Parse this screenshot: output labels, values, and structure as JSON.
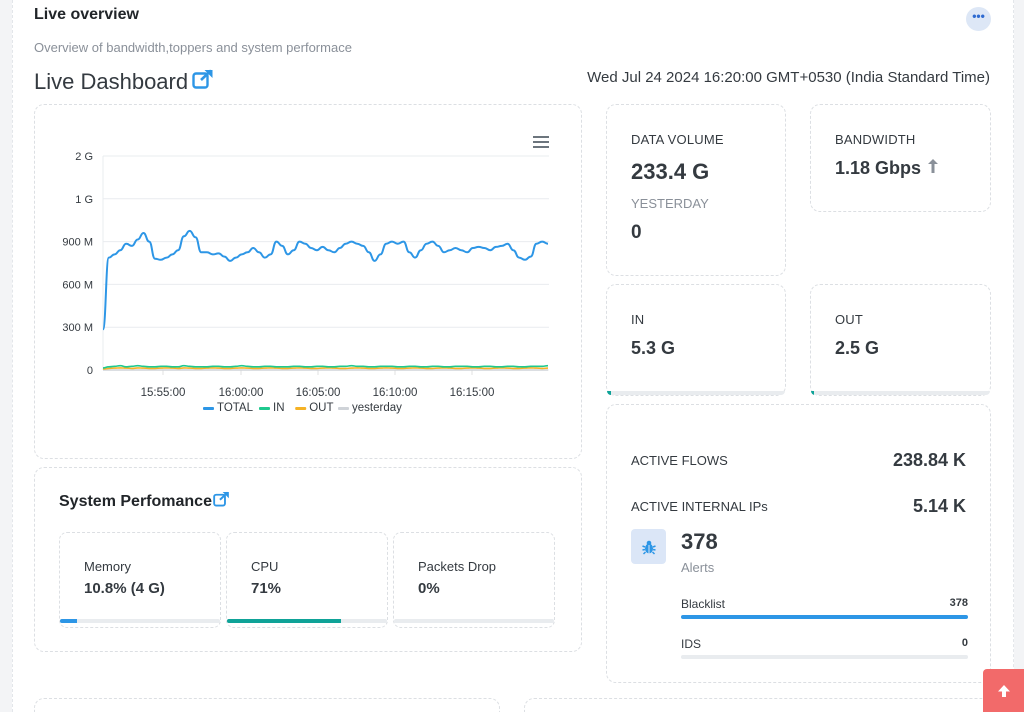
{
  "header": {
    "title": "Live overview",
    "subtitle": "Overview of bandwidth,toppers and system performace",
    "more_label": "•••"
  },
  "dashboard": {
    "title": "Live Dashboard",
    "timestamp": "Wed Jul 24 2024 16:20:00 GMT+0530 (India Standard Time)"
  },
  "chart_data": {
    "type": "line",
    "yticks": [
      "2 G",
      "1 G",
      "900 M",
      "600 M",
      "300 M",
      "0"
    ],
    "xticks": [
      "15:55:00",
      "16:00:00",
      "16:05:00",
      "16:10:00",
      "16:15:00"
    ],
    "series": [
      {
        "name": "TOTAL",
        "color": "#2d96e6",
        "values": [
          0.38,
          1.05,
          1.08,
          1.12,
          1.18,
          1.16,
          1.22,
          1.28,
          1.2,
          1.04,
          1.03,
          1.05,
          1.08,
          1.12,
          1.25,
          1.3,
          1.24,
          1.1,
          1.1,
          1.08,
          1.09,
          1.06,
          1.02,
          1.05,
          1.08,
          1.1,
          1.14,
          1.1,
          1.05,
          1.08,
          1.2,
          1.16,
          1.08,
          1.12,
          1.2,
          1.18,
          1.14,
          1.12,
          1.15,
          1.12,
          1.1,
          1.14,
          1.18,
          1.2,
          1.18,
          1.16,
          1.1,
          1.02,
          1.08,
          1.18,
          1.2,
          1.18,
          1.2,
          1.1,
          1.05,
          1.12,
          1.18,
          1.2,
          1.16,
          1.1,
          1.12,
          1.14,
          1.12,
          1.1,
          1.14,
          1.15,
          1.14,
          1.12,
          1.15,
          1.16,
          1.18,
          1.12,
          1.05,
          1.03,
          1.06,
          1.18,
          1.2,
          1.18
        ]
      },
      {
        "name": "IN",
        "color": "#1fc98e",
        "values": [
          0.02,
          0.03,
          0.035,
          0.04,
          0.03,
          0.035,
          0.04,
          0.035,
          0.03,
          0.03,
          0.035,
          0.035,
          0.03,
          0.03,
          0.04,
          0.035,
          0.03,
          0.03,
          0.03,
          0.035,
          0.035,
          0.03,
          0.03,
          0.035,
          0.04,
          0.035,
          0.03,
          0.03,
          0.035,
          0.035,
          0.03,
          0.03,
          0.03,
          0.035,
          0.035,
          0.03,
          0.03,
          0.035,
          0.035,
          0.03,
          0.03,
          0.035,
          0.035,
          0.04,
          0.035,
          0.035,
          0.03,
          0.03,
          0.035,
          0.035,
          0.035,
          0.03,
          0.03,
          0.035,
          0.035,
          0.03,
          0.03,
          0.035,
          0.035,
          0.03,
          0.03,
          0.035,
          0.035,
          0.035,
          0.03,
          0.03,
          0.035,
          0.035,
          0.03,
          0.03,
          0.035,
          0.035,
          0.03,
          0.03,
          0.035,
          0.035,
          0.035,
          0.04
        ]
      },
      {
        "name": "OUT",
        "color": "#f5b225",
        "values": [
          0.01,
          0.015,
          0.018,
          0.02,
          0.018,
          0.015,
          0.02,
          0.018,
          0.015,
          0.015,
          0.018,
          0.02,
          0.018,
          0.015,
          0.02,
          0.018,
          0.015,
          0.015,
          0.018,
          0.02,
          0.018,
          0.015,
          0.015,
          0.018,
          0.02,
          0.018,
          0.015,
          0.015,
          0.018,
          0.02,
          0.018,
          0.015,
          0.015,
          0.018,
          0.02,
          0.018,
          0.015,
          0.015,
          0.018,
          0.02,
          0.018,
          0.015,
          0.015,
          0.018,
          0.02,
          0.018,
          0.015,
          0.015,
          0.018,
          0.02,
          0.018,
          0.015,
          0.015,
          0.018,
          0.02,
          0.018,
          0.015,
          0.015,
          0.018,
          0.02,
          0.018,
          0.015,
          0.015,
          0.018,
          0.02,
          0.018,
          0.015,
          0.015,
          0.018,
          0.02,
          0.018,
          0.015,
          0.015,
          0.018,
          0.02,
          0.018,
          0.015,
          0.018
        ]
      },
      {
        "name": "yesterday",
        "color": "#cfd3d8",
        "values": [
          0,
          0,
          0,
          0,
          0,
          0,
          0,
          0,
          0,
          0,
          0,
          0,
          0,
          0,
          0,
          0,
          0,
          0,
          0,
          0,
          0,
          0,
          0,
          0,
          0,
          0,
          0,
          0,
          0,
          0,
          0,
          0,
          0,
          0,
          0,
          0,
          0,
          0,
          0,
          0,
          0,
          0,
          0,
          0,
          0,
          0,
          0,
          0,
          0,
          0,
          0,
          0,
          0,
          0,
          0,
          0,
          0,
          0,
          0,
          0,
          0,
          0,
          0,
          0,
          0,
          0,
          0,
          0,
          0,
          0,
          0,
          0,
          0,
          0,
          0,
          0,
          0,
          0
        ]
      }
    ]
  },
  "stats": {
    "data_volume_label": "DATA VOLUME",
    "data_volume_value": "233.4 G",
    "yesterday_label": "YESTERDAY",
    "yesterday_value": "0",
    "bandwidth_label": "BANDWIDTH",
    "bandwidth_value": "1.18 Gbps",
    "in_label": "IN",
    "in_value": "5.3 G",
    "in_fraction": 0.02,
    "out_label": "OUT",
    "out_value": "2.5 G",
    "out_fraction": 0.015
  },
  "flows": {
    "active_flows_label": "ACTIVE FLOWS",
    "active_flows_value": "238.84 K",
    "active_ips_label": "ACTIVE INTERNAL IPs",
    "active_ips_value": "5.14 K",
    "alerts_count": "378",
    "alerts_label": "Alerts",
    "blacklist_label": "Blacklist",
    "blacklist_value": "378",
    "blacklist_fraction": 1.0,
    "ids_label": "IDS",
    "ids_value": "0",
    "ids_fraction": 0
  },
  "performance": {
    "title": "System Perfomance",
    "memory_label": "Memory",
    "memory_value": "10.8% (4 G)",
    "memory_percent": 10.8,
    "cpu_label": "CPU",
    "cpu_value": "71%",
    "cpu_percent": 71,
    "packets_label": "Packets Drop",
    "packets_value": "0%",
    "packets_percent": 0
  },
  "colors": {
    "accent": "#2d96e6",
    "teal": "#0fa398",
    "scroll_top": "#f26a6a"
  }
}
